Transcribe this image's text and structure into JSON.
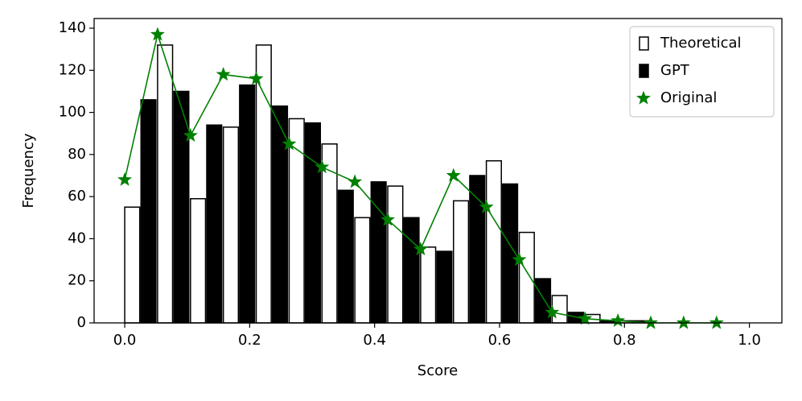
{
  "chart_data": {
    "type": "bar",
    "xlabel": "Score",
    "ylabel": "Frequency",
    "x": [
      0,
      0.0526,
      0.1053,
      0.1579,
      0.2105,
      0.2632,
      0.3158,
      0.3684,
      0.4211,
      0.4737,
      0.5263,
      0.5789,
      0.6316,
      0.6842,
      0.7368,
      0.7895,
      0.8421,
      0.8947,
      0.9474
    ],
    "series": [
      {
        "name": "Theoretical",
        "type": "bar",
        "color": "#ffffff",
        "edgecolor": "#000000",
        "values": [
          55,
          132,
          59,
          93,
          132,
          97,
          85,
          50,
          65,
          36,
          58,
          77,
          43,
          13,
          4,
          1,
          0,
          0,
          0
        ]
      },
      {
        "name": "GPT",
        "type": "bar",
        "color": "#000000",
        "edgecolor": "#000000",
        "values": [
          106,
          110,
          94,
          113,
          103,
          95,
          63,
          67,
          50,
          34,
          70,
          66,
          21,
          5,
          1,
          1,
          0,
          0,
          0
        ]
      },
      {
        "name": "Original",
        "type": "line",
        "color": "#008000",
        "marker": "star",
        "values": [
          68,
          137,
          89,
          118,
          116,
          85,
          74,
          67,
          49,
          35,
          70,
          55,
          30,
          5,
          2,
          1,
          0,
          0,
          0
        ]
      }
    ],
    "xlim": [
      -0.049,
      1.052
    ],
    "ylim": [
      0,
      144.6
    ],
    "xticks": [
      {
        "value": 0,
        "label": "0.0"
      },
      0.2,
      0.4,
      0.6,
      0.8,
      {
        "value": 1,
        "label": "1.0"
      }
    ],
    "yticks": [
      0,
      20,
      40,
      60,
      80,
      100,
      120,
      140
    ],
    "grid": false,
    "legend": "upper right"
  }
}
